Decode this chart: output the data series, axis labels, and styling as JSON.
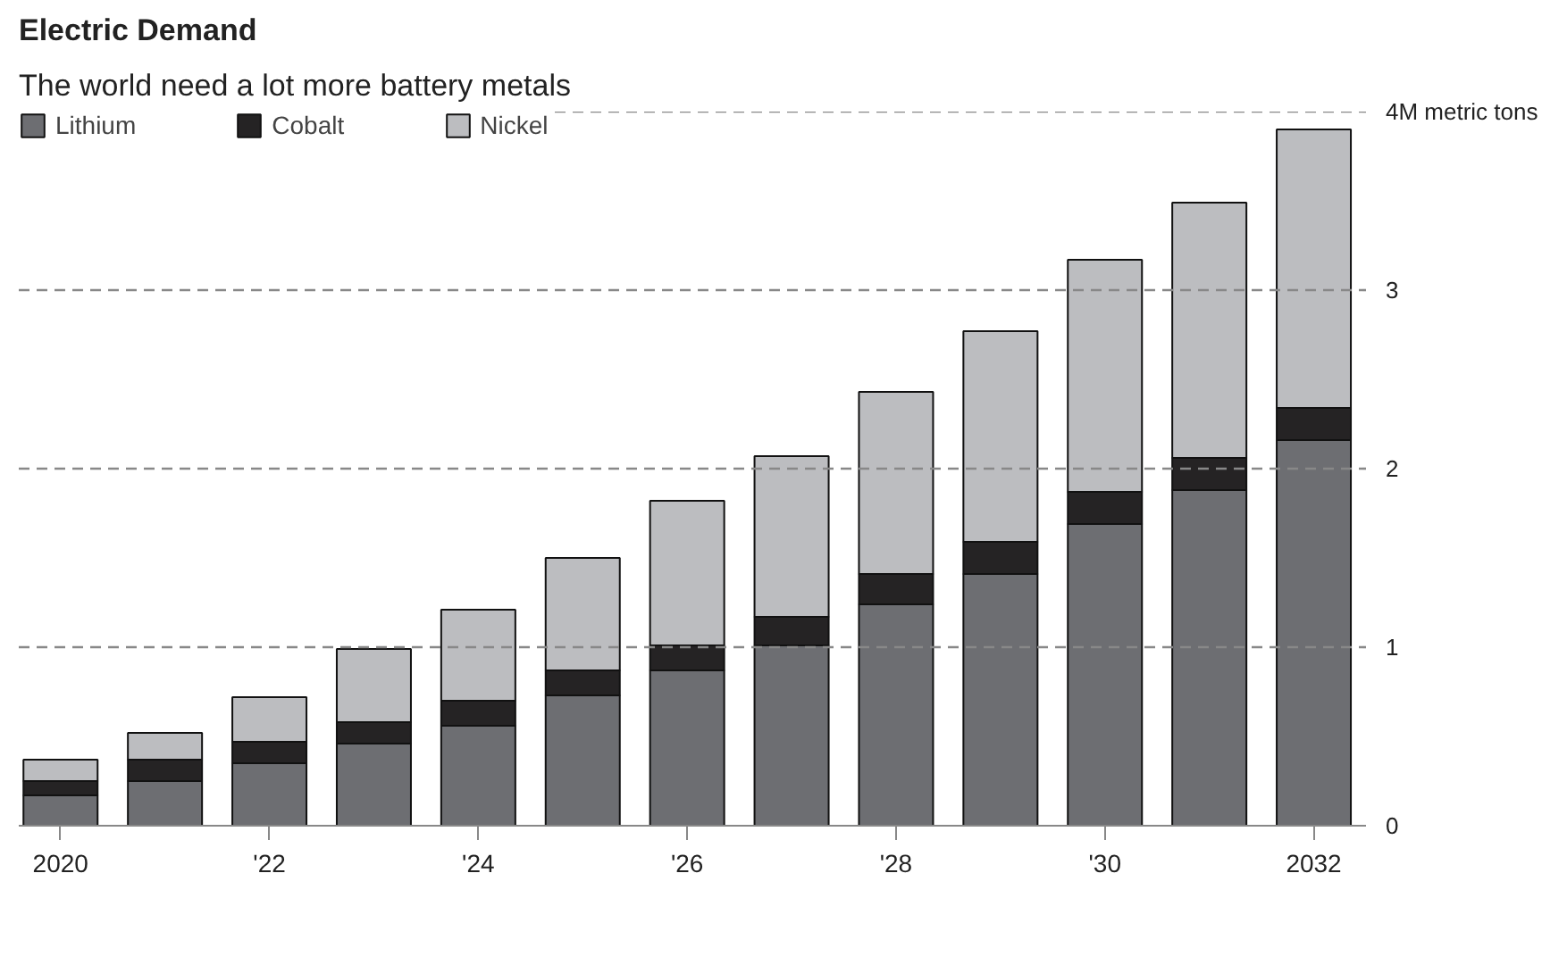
{
  "chart_data": {
    "type": "bar",
    "stacked": true,
    "title": "Electric Demand",
    "subtitle": "The world need a lot more battery metals",
    "categories": [
      "2020",
      null,
      "'22",
      null,
      "'24",
      null,
      "'26",
      null,
      "'28",
      null,
      "'30",
      null,
      "2032"
    ],
    "series": [
      {
        "name": "Lithium",
        "color": "#6d6e72",
        "values": [
          0.17,
          0.25,
          0.35,
          0.46,
          0.56,
          0.73,
          0.87,
          1.01,
          1.24,
          1.41,
          1.69,
          1.88,
          2.16
        ]
      },
      {
        "name": "Cobalt",
        "color": "#252324",
        "values": [
          0.08,
          0.12,
          0.12,
          0.12,
          0.14,
          0.14,
          0.14,
          0.16,
          0.17,
          0.18,
          0.18,
          0.18,
          0.18
        ]
      },
      {
        "name": "Nickel",
        "color": "#bcbdc0",
        "values": [
          0.12,
          0.15,
          0.25,
          0.41,
          0.51,
          0.63,
          0.81,
          0.9,
          1.02,
          1.18,
          1.3,
          1.43,
          1.56
        ]
      }
    ],
    "ylim": [
      0,
      4
    ],
    "yticks": [
      0,
      1,
      2,
      3,
      {
        "value": 4,
        "label": "4M metric tons"
      }
    ],
    "grid": "y",
    "legend": "top left"
  }
}
